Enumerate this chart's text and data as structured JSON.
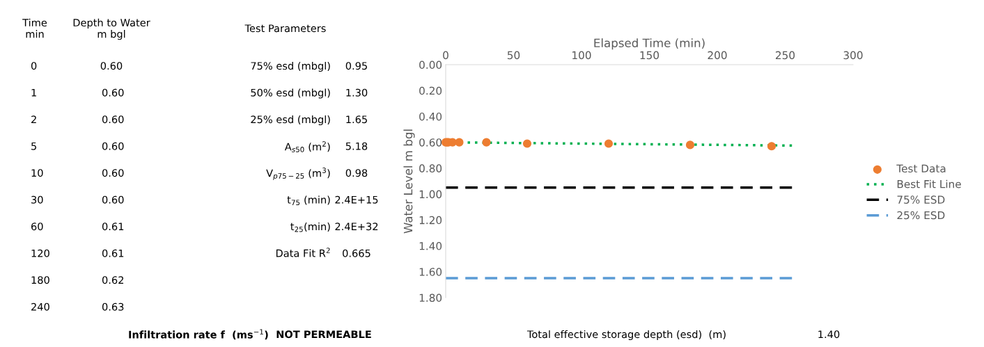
{
  "chart_data": [
    {
      "type": "other",
      "annotations": [
        "Time\nmin",
        "Depth to Water\nm bgl",
        "Test Parameters",
        "0",
        "0.60",
        "1",
        "0.60",
        "2",
        "0.60",
        "5",
        "0.60",
        "10",
        "0.60",
        "30",
        "0.60",
        "60",
        "0.61",
        "120",
        "0.61",
        "180",
        "0.62",
        "240",
        "0.63",
        "75% esd (mbgl)",
        "0.95",
        "50% esd (mbgl)",
        "1.30",
        "25% esd (mbgl)",
        "1.65",
        "A$_{s50}$ (m$^{2}$)",
        "5.18",
        "V$_{p75−25}$ (m$^{3}$)",
        "0.98",
        "t$_{75}$ (min)",
        "2.4E+15",
        "t$_{25}$(min)",
        "2.4E+32",
        "Data Fit R$^{2}$",
        "0.665",
        "Infiltration rate f  (ms$^{−1}$)",
        "NOT PERMEABLE"
      ]
    },
    {
      "type": "scatter",
      "xlabel": "Elapsed Time (min)",
      "ylabel": "Water Level m bgl",
      "xlim": [
        0,
        300
      ],
      "xticks": [
        0,
        50,
        100,
        150,
        200,
        250,
        300
      ],
      "ylim": [
        1.8,
        0
      ],
      "yticks": [
        {
          "value": 0,
          "label": "0.00"
        },
        {
          "value": 0.2,
          "label": "0.20"
        },
        {
          "value": 0.4,
          "label": "0.40"
        },
        {
          "value": 0.6,
          "label": "0.60"
        },
        {
          "value": 0.8,
          "label": "0.80"
        },
        {
          "value": 1.0,
          "label": "1.00"
        },
        {
          "value": 1.2,
          "label": "1.20"
        },
        {
          "value": 1.4,
          "label": "1.40"
        },
        {
          "value": 1.6,
          "label": "1.60"
        },
        {
          "value": 1.8,
          "label": "1.80"
        }
      ],
      "grid": false,
      "legend": "right",
      "series": [
        {
          "name": "Test Data",
          "type": "scatter",
          "color": "#ed7d31",
          "marker": "circle",
          "x": [
            0,
            1,
            2,
            5,
            10,
            30,
            60,
            120,
            180,
            240
          ],
          "values": [
            0.6,
            0.6,
            0.6,
            0.6,
            0.6,
            0.6,
            0.61,
            0.61,
            0.62,
            0.63
          ]
        },
        {
          "name": "Best Fit Line",
          "type": "line",
          "color": "#00b050",
          "line_style": "dotted",
          "marker": "none",
          "x": [
            0,
            255
          ],
          "values": [
            0.6,
            0.625
          ]
        },
        {
          "name": "75% ESD",
          "type": "line",
          "color": "#000000",
          "line_style": "dashed",
          "marker": "none",
          "x": [
            0,
            255
          ],
          "values": [
            0.95,
            0.95
          ]
        },
        {
          "name": "25% ESD",
          "type": "line",
          "color": "#5b9bd5",
          "line_style": "dashed",
          "marker": "none",
          "x": [
            0,
            255
          ],
          "values": [
            1.65,
            1.65
          ]
        }
      ],
      "annotations": [
        "Total effective storage depth (esd)  (m)",
        "1.40"
      ]
    }
  ]
}
